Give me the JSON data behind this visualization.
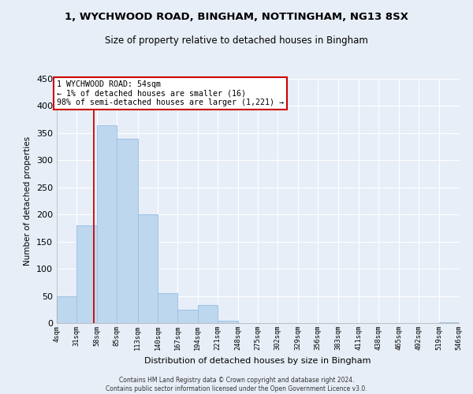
{
  "title1": "1, WYCHWOOD ROAD, BINGHAM, NOTTINGHAM, NG13 8SX",
  "title2": "Size of property relative to detached houses in Bingham",
  "xlabel": "Distribution of detached houses by size in Bingham",
  "ylabel": "Number of detached properties",
  "footnote1": "Contains HM Land Registry data © Crown copyright and database right 2024.",
  "footnote2": "Contains public sector information licensed under the Open Government Licence v3.0.",
  "bin_edges": [
    4,
    31,
    58,
    85,
    113,
    140,
    167,
    194,
    221,
    248,
    275,
    302,
    329,
    356,
    383,
    411,
    438,
    465,
    492,
    519,
    546
  ],
  "bin_labels": [
    "4sqm",
    "31sqm",
    "58sqm",
    "85sqm",
    "113sqm",
    "140sqm",
    "167sqm",
    "194sqm",
    "221sqm",
    "248sqm",
    "275sqm",
    "302sqm",
    "329sqm",
    "356sqm",
    "383sqm",
    "411sqm",
    "438sqm",
    "465sqm",
    "492sqm",
    "519sqm",
    "546sqm"
  ],
  "counts": [
    50,
    180,
    365,
    340,
    200,
    55,
    25,
    33,
    5,
    0,
    0,
    0,
    0,
    0,
    0,
    0,
    0,
    0,
    0,
    2
  ],
  "bar_color": "#bdd7ee",
  "bar_edge_color": "#9dc3e6",
  "property_line_x": 54,
  "property_line_color": "#cc0000",
  "annotation_line1": "1 WYCHWOOD ROAD: 54sqm",
  "annotation_line2": "← 1% of detached houses are smaller (16)",
  "annotation_line3": "98% of semi-detached houses are larger (1,221) →",
  "annotation_box_color": "white",
  "annotation_box_edge_color": "#cc0000",
  "ylim": [
    0,
    450
  ],
  "yticks": [
    0,
    50,
    100,
    150,
    200,
    250,
    300,
    350,
    400,
    450
  ],
  "background_color": "#e8eef8",
  "grid_color": "white"
}
